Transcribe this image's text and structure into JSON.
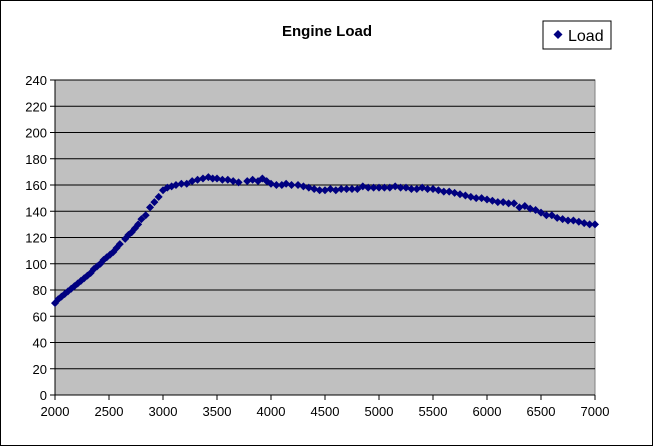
{
  "chart_data": {
    "type": "scatter",
    "title": "Engine Load",
    "xlabel": "",
    "ylabel": "",
    "xlim": [
      2000,
      7000
    ],
    "ylim": [
      0,
      240
    ],
    "xticks": [
      2000,
      2500,
      3000,
      3500,
      4000,
      4500,
      5000,
      5500,
      6000,
      6500,
      7000
    ],
    "yticks": [
      0,
      20,
      40,
      60,
      80,
      100,
      120,
      140,
      160,
      180,
      200,
      220,
      240
    ],
    "grid": "horizontal",
    "legend_position": "top-right",
    "plot_background": "#c0c0c0",
    "marker_color": "#000080",
    "series": [
      {
        "name": "Load",
        "points": [
          [
            2000,
            70
          ],
          [
            2030,
            73
          ],
          [
            2060,
            75
          ],
          [
            2090,
            77
          ],
          [
            2120,
            79
          ],
          [
            2150,
            81
          ],
          [
            2180,
            83
          ],
          [
            2210,
            85
          ],
          [
            2240,
            87
          ],
          [
            2270,
            89
          ],
          [
            2300,
            91
          ],
          [
            2330,
            93
          ],
          [
            2360,
            96
          ],
          [
            2390,
            98
          ],
          [
            2420,
            100
          ],
          [
            2450,
            103
          ],
          [
            2480,
            105
          ],
          [
            2510,
            107
          ],
          [
            2540,
            109
          ],
          [
            2570,
            112
          ],
          [
            2600,
            115
          ],
          [
            2650,
            119
          ],
          [
            2680,
            122
          ],
          [
            2710,
            124
          ],
          [
            2740,
            127
          ],
          [
            2770,
            130
          ],
          [
            2800,
            134
          ],
          [
            2840,
            137
          ],
          [
            2880,
            143
          ],
          [
            2920,
            147
          ],
          [
            2960,
            151
          ],
          [
            3000,
            156
          ],
          [
            3040,
            158
          ],
          [
            3080,
            159
          ],
          [
            3120,
            160
          ],
          [
            3170,
            161
          ],
          [
            3220,
            161
          ],
          [
            3270,
            163
          ],
          [
            3320,
            164
          ],
          [
            3370,
            165
          ],
          [
            3420,
            166
          ],
          [
            3460,
            165
          ],
          [
            3500,
            165
          ],
          [
            3550,
            164
          ],
          [
            3600,
            164
          ],
          [
            3650,
            163
          ],
          [
            3700,
            162
          ],
          [
            3780,
            163
          ],
          [
            3830,
            164
          ],
          [
            3880,
            163
          ],
          [
            3920,
            165
          ],
          [
            3960,
            163
          ],
          [
            4000,
            161
          ],
          [
            4050,
            160
          ],
          [
            4100,
            160
          ],
          [
            4140,
            161
          ],
          [
            4190,
            160
          ],
          [
            4250,
            160
          ],
          [
            4300,
            159
          ],
          [
            4350,
            158
          ],
          [
            4400,
            157
          ],
          [
            4450,
            156
          ],
          [
            4500,
            156
          ],
          [
            4550,
            157
          ],
          [
            4600,
            156
          ],
          [
            4650,
            157
          ],
          [
            4700,
            157
          ],
          [
            4750,
            157
          ],
          [
            4800,
            157
          ],
          [
            4850,
            159
          ],
          [
            4900,
            158
          ],
          [
            4950,
            158
          ],
          [
            5000,
            158
          ],
          [
            5050,
            158
          ],
          [
            5100,
            158
          ],
          [
            5150,
            159
          ],
          [
            5200,
            158
          ],
          [
            5250,
            158
          ],
          [
            5300,
            157
          ],
          [
            5350,
            157
          ],
          [
            5400,
            158
          ],
          [
            5450,
            157
          ],
          [
            5500,
            157
          ],
          [
            5550,
            156
          ],
          [
            5600,
            155
          ],
          [
            5650,
            155
          ],
          [
            5700,
            154
          ],
          [
            5750,
            153
          ],
          [
            5800,
            152
          ],
          [
            5850,
            151
          ],
          [
            5900,
            150
          ],
          [
            5950,
            150
          ],
          [
            6000,
            149
          ],
          [
            6050,
            148
          ],
          [
            6100,
            147
          ],
          [
            6150,
            147
          ],
          [
            6200,
            146
          ],
          [
            6250,
            146
          ],
          [
            6300,
            143
          ],
          [
            6350,
            144
          ],
          [
            6400,
            142
          ],
          [
            6450,
            141
          ],
          [
            6500,
            139
          ],
          [
            6550,
            137
          ],
          [
            6600,
            137
          ],
          [
            6650,
            135
          ],
          [
            6700,
            134
          ],
          [
            6750,
            133
          ],
          [
            6800,
            133
          ],
          [
            6850,
            132
          ],
          [
            6900,
            131
          ],
          [
            6950,
            130
          ],
          [
            7000,
            130
          ]
        ]
      }
    ]
  }
}
